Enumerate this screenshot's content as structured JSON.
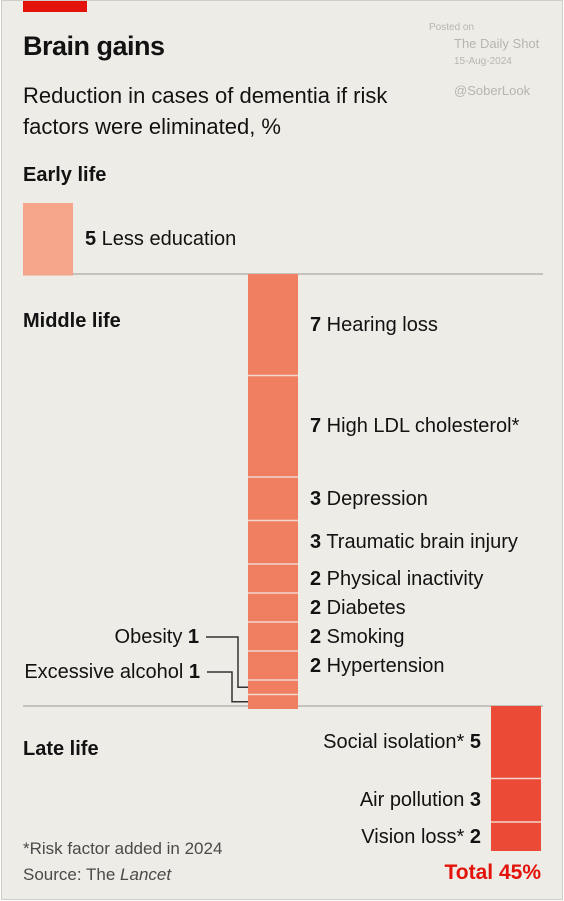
{
  "title": "Brain gains",
  "subtitle": "Reduction in cases of dementia if risk factors were eliminated, %",
  "watermark": {
    "posted": "Posted on",
    "site": "The Daily Shot",
    "date": "15-Aug-2024",
    "handle": "@SoberLook"
  },
  "sections": {
    "early": "Early life",
    "middle": "Middle life",
    "late": "Late life"
  },
  "footnote": "*Risk factor added in 2024",
  "source_prefix": "Source: The ",
  "source_name": "Lancet",
  "total_label": "Total 45%",
  "colors": {
    "early": "#f4a58a",
    "middle": "#f07f62",
    "late": "#ea4a36",
    "accent": "#e3120b",
    "divider": "#c4c2bd"
  },
  "chart_data": {
    "type": "bar",
    "title": "Brain gains",
    "subtitle": "Reduction in cases of dementia if risk factors were eliminated, %",
    "unit": "%",
    "total": 45,
    "groups": [
      {
        "name": "Early life",
        "factors": [
          {
            "name": "Less education",
            "value": 5
          }
        ]
      },
      {
        "name": "Middle life",
        "factors": [
          {
            "name": "Hearing loss",
            "value": 7
          },
          {
            "name": "High LDL cholesterol*",
            "value": 7
          },
          {
            "name": "Depression",
            "value": 3
          },
          {
            "name": "Traumatic brain injury",
            "value": 3
          },
          {
            "name": "Physical inactivity",
            "value": 2
          },
          {
            "name": "Diabetes",
            "value": 2
          },
          {
            "name": "Smoking",
            "value": 2
          },
          {
            "name": "Hypertension",
            "value": 2
          },
          {
            "name": "Obesity",
            "value": 1
          },
          {
            "name": "Excessive alcohol",
            "value": 1
          }
        ]
      },
      {
        "name": "Late life",
        "factors": [
          {
            "name": "Social isolation*",
            "value": 5
          },
          {
            "name": "Air pollution",
            "value": 3
          },
          {
            "name": "Vision loss*",
            "value": 2
          }
        ]
      }
    ]
  }
}
